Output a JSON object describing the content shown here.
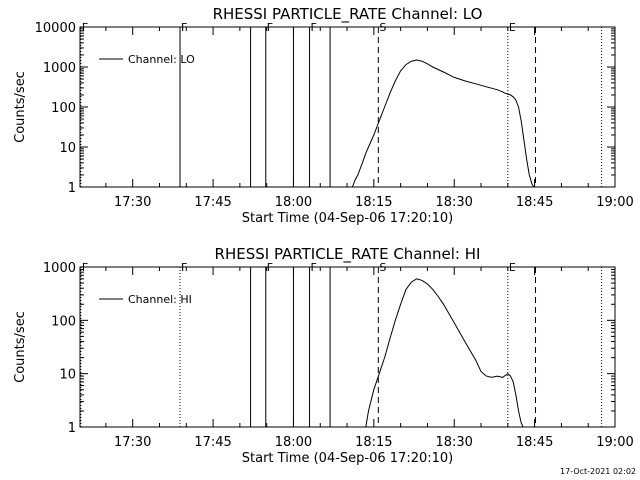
{
  "footer": {
    "timestamp": "17-Oct-2021 02:02"
  },
  "chart_data": [
    {
      "type": "line",
      "title": "RHESSI PARTICLE_RATE Channel: LO",
      "xlabel": "Start Time (04-Sep-06 17:20:10)",
      "ylabel": "Counts/sec",
      "y_scale": "log",
      "ylim": [
        1,
        10000
      ],
      "xlim": [
        "17:20:10",
        "19:00:00"
      ],
      "x_ticks": [
        "17:30",
        "17:45",
        "18:00",
        "18:15",
        "18:30",
        "18:45",
        "19:00"
      ],
      "y_ticks": [
        "1",
        "10",
        "100",
        "1000",
        "10000"
      ],
      "legend": {
        "label": "Channel: LO",
        "placement": "upper-left"
      },
      "color": "#000000",
      "series": [
        {
          "name": "Channel: LO",
          "x": [
            "18:11:00",
            "18:11:30",
            "18:12:00",
            "18:12:30",
            "18:13:00",
            "18:13:30",
            "18:14:00",
            "18:15:00",
            "18:16:00",
            "18:17:00",
            "18:18:00",
            "18:19:00",
            "18:20:00",
            "18:21:00",
            "18:22:00",
            "18:23:00",
            "18:24:00",
            "18:25:00",
            "18:26:00",
            "18:28:00",
            "18:30:00",
            "18:32:00",
            "18:34:00",
            "18:36:00",
            "18:38:00",
            "18:39:00",
            "18:39:30",
            "18:40:00",
            "18:40:30",
            "18:41:00",
            "18:41:30",
            "18:42:00",
            "18:42:30",
            "18:43:00",
            "18:43:30",
            "18:44:00",
            "18:44:30",
            "18:44:50"
          ],
          "values": [
            1,
            1.5,
            2,
            3,
            4.5,
            7,
            10,
            20,
            45,
            100,
            220,
            450,
            800,
            1150,
            1400,
            1500,
            1400,
            1200,
            1000,
            750,
            550,
            450,
            380,
            320,
            270,
            240,
            220,
            210,
            200,
            180,
            150,
            100,
            45,
            15,
            5,
            2,
            1.2,
            1
          ]
        }
      ],
      "markers": [
        {
          "label": "F",
          "time": "17:20:20",
          "style": "dotted"
        },
        {
          "label": "F",
          "time": "17:38:50",
          "style": "solid"
        },
        {
          "label": "",
          "time": "17:52:00",
          "style": "solid"
        },
        {
          "label": "F",
          "time": "17:54:50",
          "style": "solid"
        },
        {
          "label": "",
          "time": "18:00:00",
          "style": "solid"
        },
        {
          "label": "F",
          "time": "18:03:00",
          "style": "solid"
        },
        {
          "label": "",
          "time": "18:06:50",
          "style": "solid"
        },
        {
          "label": "S",
          "time": "18:15:50",
          "style": "dashed"
        },
        {
          "label": "E",
          "time": "18:40:00",
          "style": "dotted"
        },
        {
          "label": "",
          "time": "18:45:10",
          "style": "dashed"
        },
        {
          "label": "",
          "time": "18:57:30",
          "style": "dotted"
        }
      ]
    },
    {
      "type": "line",
      "title": "RHESSI PARTICLE_RATE Channel: HI",
      "xlabel": "Start Time (04-Sep-06 17:20:10)",
      "ylabel": "Counts/sec",
      "y_scale": "log",
      "ylim": [
        1,
        1000
      ],
      "xlim": [
        "17:20:10",
        "19:00:00"
      ],
      "x_ticks": [
        "17:30",
        "17:45",
        "18:00",
        "18:15",
        "18:30",
        "18:45",
        "19:00"
      ],
      "y_ticks": [
        "1",
        "10",
        "100",
        "1000"
      ],
      "legend": {
        "label": "Channel: HI",
        "placement": "upper-left"
      },
      "color": "#000000",
      "series": [
        {
          "name": "Channel: HI",
          "x": [
            "18:13:30",
            "18:14:00",
            "18:15:00",
            "18:16:00",
            "18:17:00",
            "18:18:00",
            "18:19:00",
            "18:20:00",
            "18:21:00",
            "18:22:00",
            "18:23:00",
            "18:24:00",
            "18:25:00",
            "18:26:00",
            "18:27:00",
            "18:28:00",
            "18:30:00",
            "18:32:00",
            "18:34:00",
            "18:35:00",
            "18:36:00",
            "18:37:00",
            "18:38:00",
            "18:39:00",
            "18:40:00",
            "18:40:30",
            "18:41:00",
            "18:41:30",
            "18:42:00",
            "18:42:30",
            "18:42:50"
          ],
          "values": [
            1,
            2,
            5,
            10,
            20,
            45,
            100,
            200,
            380,
            520,
            600,
            560,
            480,
            380,
            280,
            200,
            90,
            40,
            18,
            11,
            9,
            8.5,
            9,
            8.5,
            10,
            9,
            7,
            4,
            2,
            1.2,
            1
          ]
        }
      ],
      "markers": [
        {
          "label": "F",
          "time": "17:20:20",
          "style": "dotted"
        },
        {
          "label": "F",
          "time": "17:38:50",
          "style": "dotted"
        },
        {
          "label": "",
          "time": "17:52:00",
          "style": "solid"
        },
        {
          "label": "F",
          "time": "17:54:50",
          "style": "solid"
        },
        {
          "label": "",
          "time": "18:00:00",
          "style": "solid"
        },
        {
          "label": "F",
          "time": "18:03:00",
          "style": "solid"
        },
        {
          "label": "",
          "time": "18:06:50",
          "style": "solid"
        },
        {
          "label": "S",
          "time": "18:15:50",
          "style": "dashed"
        },
        {
          "label": "E",
          "time": "18:40:00",
          "style": "dotted"
        },
        {
          "label": "",
          "time": "18:45:10",
          "style": "dashed"
        },
        {
          "label": "",
          "time": "18:57:30",
          "style": "dotted"
        }
      ]
    }
  ]
}
